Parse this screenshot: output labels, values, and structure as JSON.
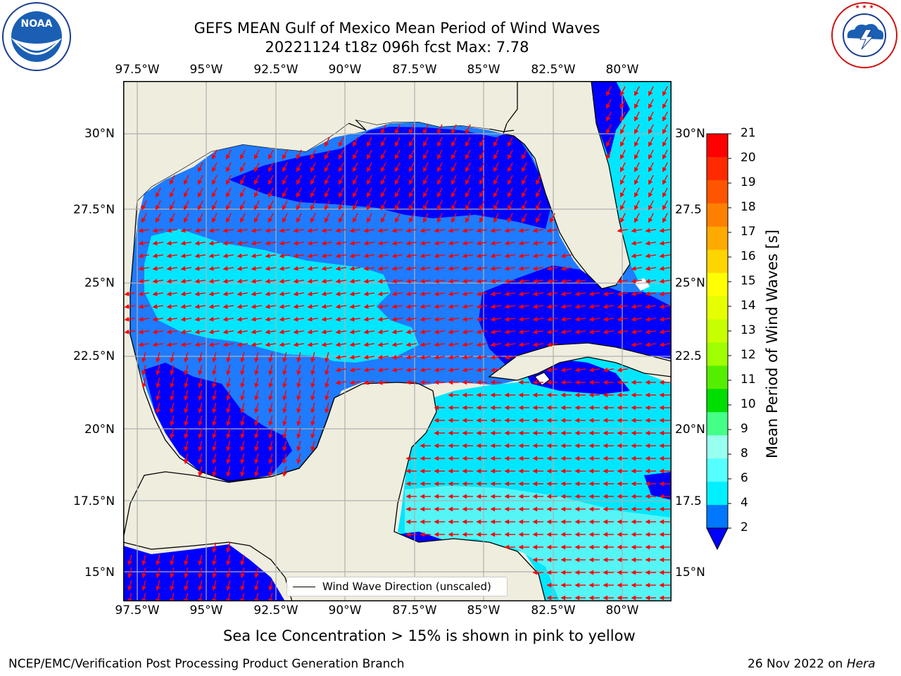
{
  "title": {
    "line1": "GEFS MEAN Gulf of Mexico Mean Period of Wind Waves",
    "line2": "20221124 t18z 096h fcst   Max: 7.78"
  },
  "axes": {
    "lon_labels": [
      "97.5°W",
      "95°W",
      "92.5°W",
      "90°W",
      "87.5°W",
      "85°W",
      "82.5°W",
      "80°W"
    ],
    "lat_labels_left": [
      "30°N",
      "27.5°N",
      "25°N",
      "22.5°N",
      "20°N",
      "17.5°N",
      "15°N"
    ],
    "lat_labels_right": [
      "30°N",
      "27.5",
      "25°N",
      "22.5",
      "20°N",
      "17.5",
      "15°N"
    ]
  },
  "legend": {
    "label": "Wind Wave Direction (unscaled)"
  },
  "colorbar": {
    "title": "Mean Period of Wind Waves [s]",
    "ticks": [
      "21",
      "20",
      "19",
      "18",
      "17",
      "16",
      "15",
      "14",
      "13",
      "12",
      "11",
      "10",
      "9",
      "8",
      "6",
      "4",
      "2"
    ],
    "colors": [
      "#ff0000",
      "#ff2a00",
      "#ff5500",
      "#ff8000",
      "#ffaa00",
      "#ffd400",
      "#ffff00",
      "#e6ff00",
      "#c8ff00",
      "#a0ff00",
      "#55ee00",
      "#00dd00",
      "#44ff88",
      "#99ffee",
      "#55ffff",
      "#00f0ff",
      "#0077ff"
    ],
    "extend_color": "#0000ff"
  },
  "caption": "Sea Ice Concentration > 15% is shown in pink to yellow",
  "footer": {
    "left": "NCEP/EMC/Verification Post Processing Product Generation Branch",
    "date": "26 Nov 2022 on",
    "machine": "Hera"
  },
  "logos": {
    "noaa": {
      "text": "NOAA",
      "ring": "NATIONAL OCEANIC AND ATMOSPHERIC ADMINISTRATION · U.S. DEPARTMENT OF COMMERCE"
    },
    "nws": {
      "ring": "NATIONAL WEATHER SERVICE"
    }
  },
  "map_colors": {
    "land": "#efedde",
    "band_2_4": "#0000ff",
    "band_4_6": "#1f7bff",
    "band_6_8": "#00e6ff",
    "band_8_9": "#55f5f5",
    "arrow": "#ff0000",
    "grid": "#b0b0b0"
  }
}
